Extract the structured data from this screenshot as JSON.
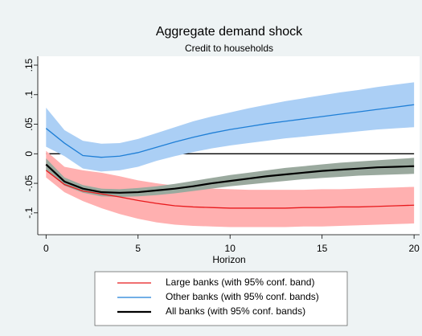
{
  "chart_data": {
    "type": "line",
    "title": "Aggregate demand shock",
    "subtitle": "Credit to households",
    "xlabel": "Horizon",
    "x": [
      0,
      1,
      2,
      3,
      4,
      5,
      6,
      7,
      8,
      9,
      10,
      11,
      12,
      13,
      14,
      15,
      16,
      17,
      18,
      19,
      20
    ],
    "xlim": [
      -0.45,
      20.3
    ],
    "xticks": [
      0,
      5,
      10,
      15,
      20
    ],
    "ylim": [
      -0.137,
      0.165
    ],
    "yticks": [
      {
        "value": -0.1,
        "label": "-.1"
      },
      {
        "value": -0.05,
        "label": "-.05"
      },
      0,
      {
        "value": 0.05,
        "label": ".05"
      },
      {
        "value": 0.1,
        "label": ".1"
      },
      {
        "value": 0.15,
        "label": ".15"
      }
    ],
    "refline": 0,
    "series": [
      {
        "name": "Large banks (with 95% conf. band)",
        "color": "#e8191c",
        "band_color": "#ffb0b0",
        "values": [
          -0.028,
          -0.052,
          -0.063,
          -0.068,
          -0.073,
          -0.079,
          -0.084,
          -0.088,
          -0.09,
          -0.091,
          -0.092,
          -0.092,
          -0.092,
          -0.092,
          -0.091,
          -0.091,
          -0.09,
          -0.09,
          -0.089,
          -0.088,
          -0.087
        ],
        "upper": [
          0.005,
          -0.022,
          -0.028,
          -0.032,
          -0.038,
          -0.045,
          -0.05,
          -0.054,
          -0.057,
          -0.059,
          -0.06,
          -0.061,
          -0.061,
          -0.061,
          -0.061,
          -0.06,
          -0.06,
          -0.059,
          -0.058,
          -0.057,
          -0.056
        ],
        "lower": [
          -0.04,
          -0.065,
          -0.08,
          -0.092,
          -0.102,
          -0.11,
          -0.116,
          -0.12,
          -0.122,
          -0.123,
          -0.124,
          -0.124,
          -0.124,
          -0.124,
          -0.123,
          -0.123,
          -0.122,
          -0.121,
          -0.12,
          -0.119,
          -0.118
        ]
      },
      {
        "name": "Other banks (with 95% conf. bands)",
        "color": "#1f7fd6",
        "band_color": "#abcff5",
        "values": [
          0.043,
          0.018,
          -0.003,
          -0.006,
          -0.004,
          0.002,
          0.011,
          0.02,
          0.028,
          0.035,
          0.041,
          0.046,
          0.051,
          0.055,
          0.059,
          0.063,
          0.067,
          0.071,
          0.075,
          0.079,
          0.083
        ],
        "upper": [
          0.078,
          0.04,
          0.022,
          0.017,
          0.018,
          0.025,
          0.035,
          0.045,
          0.055,
          0.063,
          0.07,
          0.077,
          0.083,
          0.089,
          0.094,
          0.099,
          0.104,
          0.108,
          0.113,
          0.117,
          0.121
        ],
        "lower": [
          0.012,
          -0.004,
          -0.025,
          -0.03,
          -0.028,
          -0.022,
          -0.012,
          -0.004,
          0.003,
          0.009,
          0.014,
          0.018,
          0.022,
          0.026,
          0.029,
          0.032,
          0.035,
          0.038,
          0.041,
          0.043,
          0.045
        ]
      },
      {
        "name": "All banks (with 95% conf. bands)",
        "color": "#000000",
        "band_color": "#9aa99e",
        "values": [
          -0.018,
          -0.047,
          -0.059,
          -0.065,
          -0.066,
          -0.065,
          -0.062,
          -0.059,
          -0.055,
          -0.05,
          -0.046,
          -0.042,
          -0.038,
          -0.035,
          -0.032,
          -0.029,
          -0.027,
          -0.025,
          -0.023,
          -0.022,
          -0.021
        ],
        "upper": [
          -0.008,
          -0.04,
          -0.053,
          -0.059,
          -0.06,
          -0.058,
          -0.055,
          -0.051,
          -0.046,
          -0.041,
          -0.036,
          -0.032,
          -0.028,
          -0.024,
          -0.021,
          -0.018,
          -0.015,
          -0.013,
          -0.011,
          -0.009,
          -0.007
        ],
        "lower": [
          -0.028,
          -0.054,
          -0.066,
          -0.072,
          -0.073,
          -0.072,
          -0.07,
          -0.067,
          -0.063,
          -0.059,
          -0.055,
          -0.052,
          -0.049,
          -0.046,
          -0.043,
          -0.041,
          -0.039,
          -0.037,
          -0.036,
          -0.035,
          -0.034
        ]
      }
    ]
  }
}
